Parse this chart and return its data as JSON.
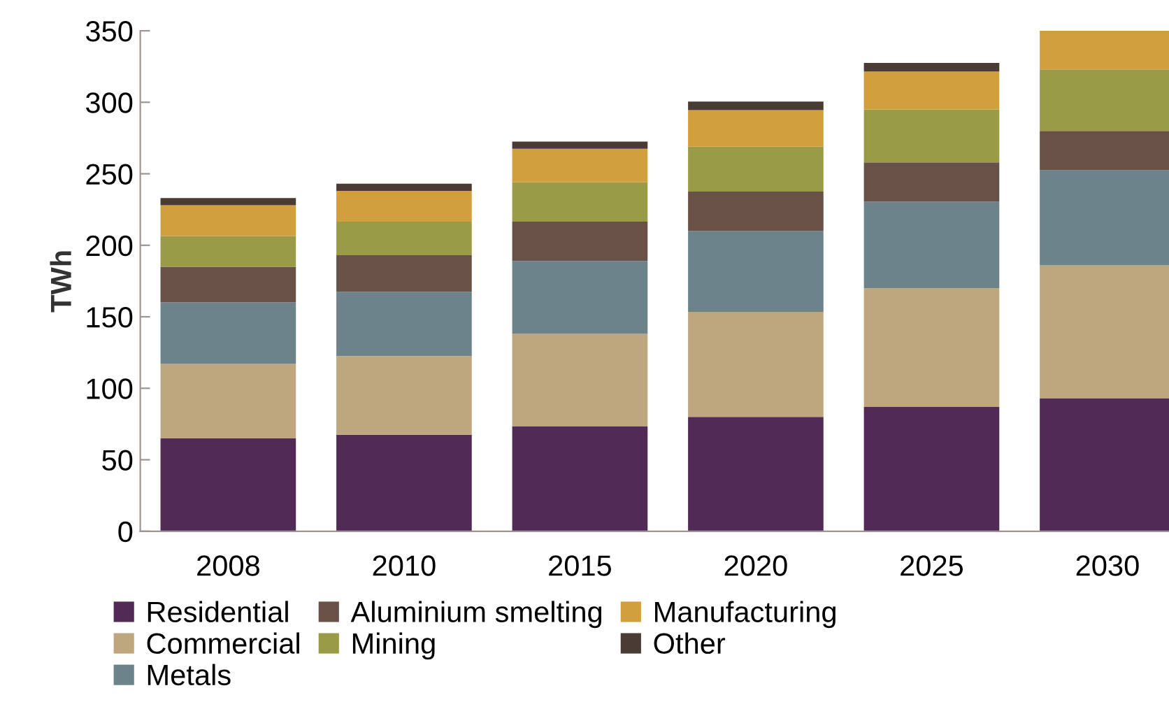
{
  "chart_data": {
    "type": "bar",
    "stacked": true,
    "ylabel": "TWh",
    "categories": [
      "2008",
      "2010",
      "2015",
      "2020",
      "2025",
      "2030"
    ],
    "series": [
      {
        "name": "Residential",
        "color": "#512a55",
        "values": [
          65,
          67.5,
          73.5,
          80,
          87,
          93
        ]
      },
      {
        "name": "Commercial",
        "color": "#bea77e",
        "values": [
          52,
          55,
          64.5,
          73.5,
          83,
          93
        ]
      },
      {
        "name": "Metals",
        "color": "#6c838a",
        "values": [
          43,
          45,
          51,
          56.5,
          60.5,
          66.5
        ]
      },
      {
        "name": "Aluminium smelting",
        "color": "#685248",
        "values": [
          25,
          25.5,
          27.5,
          27.5,
          27.5,
          27.5
        ]
      },
      {
        "name": "Mining",
        "color": "#9a9b46",
        "values": [
          21.5,
          23.5,
          27.5,
          31.5,
          37,
          43
        ]
      },
      {
        "name": "Manufacturing",
        "color": "#d29f3d",
        "values": [
          21.5,
          21.5,
          23.5,
          25.5,
          26.5,
          27
        ]
      },
      {
        "name": "Other",
        "color": "#4a3b35",
        "values": [
          5,
          5,
          5,
          6,
          6,
          null
        ]
      }
    ],
    "ylim": [
      0,
      350
    ],
    "yticks": [
      0,
      50,
      100,
      150,
      200,
      250,
      300,
      350
    ],
    "grid": false,
    "legend": "bottom"
  }
}
